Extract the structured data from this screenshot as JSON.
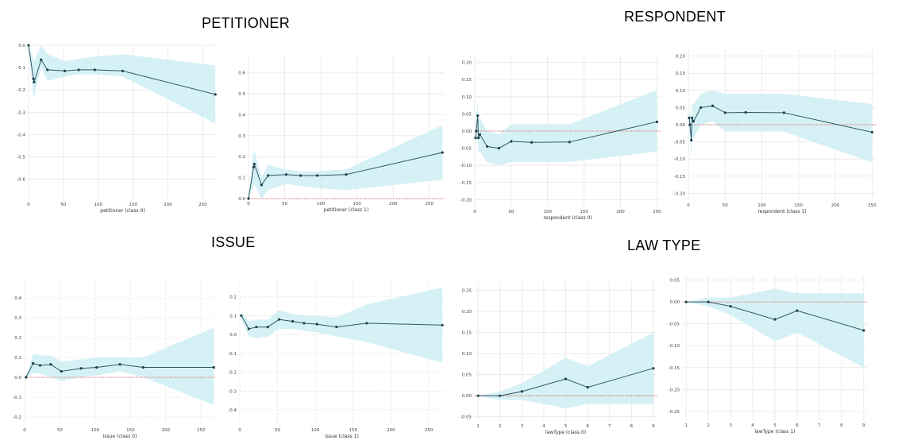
{
  "sections": {
    "petitioner": "PETITIONER",
    "respondent": "RESPONDENT",
    "issue": "ISSUE",
    "law_type": "LAW TYPE"
  },
  "colors": {
    "band": "#cfeef3",
    "line": "#2e5864",
    "point": "#1e3f49",
    "zero": "#e45a5a",
    "grid": "#e6e6e6"
  },
  "chart_data": [
    {
      "type": "line",
      "xlabel": "petitioner (class 0)",
      "xlim": [
        0,
        270
      ],
      "ylim": [
        -0.69,
        0.0
      ],
      "xticks": [
        0,
        50,
        100,
        150,
        200,
        250
      ],
      "yticks": [
        0.0,
        -0.1,
        -0.2,
        -0.3,
        -0.4,
        -0.5,
        -0.6
      ],
      "ytick_labels": [
        "0.0",
        "-0.1",
        "-0.2",
        "-0.3",
        "-0.4",
        "-0.5",
        "-0.6"
      ],
      "zero_line": false,
      "grid_dashed": false,
      "x": [
        0,
        7,
        8,
        18,
        27,
        52,
        72,
        95,
        135,
        268
      ],
      "y": [
        0.0,
        -0.15,
        -0.165,
        -0.065,
        -0.11,
        -0.115,
        -0.11,
        -0.11,
        -0.115,
        -0.22
      ],
      "lower": [
        0.0,
        -0.23,
        -0.23,
        -0.1,
        -0.16,
        -0.14,
        -0.13,
        -0.13,
        -0.14,
        -0.35
      ],
      "upper": [
        0.0,
        -0.06,
        -0.07,
        0.0,
        -0.04,
        -0.07,
        -0.06,
        -0.05,
        -0.04,
        -0.09
      ]
    },
    {
      "type": "line",
      "xlabel": "petitioner (class 1)",
      "xlim": [
        0,
        270
      ],
      "ylim": [
        0.0,
        0.69
      ],
      "xticks": [
        0,
        50,
        100,
        150,
        200,
        250
      ],
      "yticks": [
        0.0,
        0.1,
        0.2,
        0.3,
        0.4,
        0.5,
        0.6
      ],
      "ytick_labels": [
        "0.0",
        "0.1",
        "0.2",
        "0.3",
        "0.4",
        "0.5",
        "0.6"
      ],
      "zero_line": true,
      "grid_dashed": false,
      "x": [
        0,
        7,
        8,
        18,
        27,
        52,
        72,
        95,
        135,
        268
      ],
      "y": [
        0.0,
        0.15,
        0.165,
        0.065,
        0.11,
        0.115,
        0.11,
        0.11,
        0.115,
        0.22
      ],
      "lower": [
        0.0,
        0.06,
        0.07,
        0.0,
        0.04,
        0.07,
        0.06,
        0.05,
        0.04,
        0.09
      ],
      "upper": [
        0.0,
        0.23,
        0.23,
        0.1,
        0.16,
        0.14,
        0.13,
        0.13,
        0.14,
        0.35
      ]
    },
    {
      "type": "line",
      "xlabel": "respondent (class 0)",
      "xlim": [
        0,
        255
      ],
      "ylim": [
        -0.22,
        0.22
      ],
      "xticks": [
        0,
        50,
        100,
        150,
        200,
        250
      ],
      "yticks": [
        0.2,
        0.15,
        0.1,
        0.05,
        0.0,
        -0.05,
        -0.1,
        -0.15,
        -0.2
      ],
      "ytick_labels": [
        "0.20",
        "0.15",
        "0.10",
        "0.05",
        "0.00",
        "-0.05",
        "-0.10",
        "-0.15",
        "-0.20"
      ],
      "zero_line": true,
      "grid_dashed": false,
      "x": [
        1,
        2,
        4,
        5,
        7,
        17,
        33,
        50,
        78,
        130,
        250
      ],
      "y": [
        -0.02,
        0.0,
        0.045,
        -0.02,
        -0.01,
        -0.045,
        -0.05,
        -0.03,
        -0.033,
        -0.032,
        0.027
      ],
      "lower": [
        -0.05,
        -0.04,
        0.0,
        -0.06,
        -0.06,
        -0.09,
        -0.1,
        -0.09,
        -0.09,
        -0.09,
        -0.06
      ],
      "upper": [
        0.02,
        0.04,
        0.09,
        0.03,
        0.04,
        0.0,
        -0.01,
        0.02,
        0.02,
        0.02,
        0.12
      ]
    },
    {
      "type": "line",
      "xlabel": "respondent (class 1)",
      "xlim": [
        0,
        255
      ],
      "ylim": [
        -0.22,
        0.22
      ],
      "xticks": [
        0,
        50,
        100,
        150,
        200,
        250
      ],
      "yticks": [
        0.2,
        0.15,
        0.1,
        0.05,
        0.0,
        -0.05,
        -0.1,
        -0.15,
        -0.2
      ],
      "ytick_labels": [
        "0.20",
        "0.15",
        "0.10",
        "0.05",
        "0.00",
        "-0.05",
        "-0.10",
        "-0.15",
        "-0.20"
      ],
      "zero_line": true,
      "grid_dashed": false,
      "x": [
        1,
        2,
        4,
        5,
        7,
        17,
        33,
        50,
        78,
        130,
        250
      ],
      "y": [
        0.02,
        0.0,
        -0.045,
        0.02,
        0.01,
        0.05,
        0.055,
        0.035,
        0.036,
        0.035,
        -0.022
      ],
      "lower": [
        -0.02,
        -0.04,
        -0.09,
        -0.03,
        -0.04,
        0.0,
        0.01,
        -0.02,
        -0.02,
        -0.02,
        -0.11
      ],
      "upper": [
        0.05,
        0.04,
        0.0,
        0.06,
        0.06,
        0.09,
        0.1,
        0.09,
        0.09,
        0.09,
        0.06
      ]
    },
    {
      "type": "line",
      "xlabel": "issue (class 0)",
      "xlim": [
        0,
        270
      ],
      "ylim": [
        -0.24,
        0.5
      ],
      "xticks": [
        0,
        50,
        100,
        150,
        200,
        250
      ],
      "yticks": [
        0.4,
        0.3,
        0.2,
        0.1,
        0.0,
        -0.1,
        -0.2
      ],
      "ytick_labels": [
        "0.4",
        "0.3",
        "0.2",
        "0.1",
        "0.0",
        "-0.1",
        "-0.2"
      ],
      "zero_line": true,
      "grid_dashed": true,
      "x": [
        2,
        12,
        22,
        37,
        52,
        80,
        102,
        135,
        168,
        268
      ],
      "y": [
        0.0,
        0.07,
        0.06,
        0.065,
        0.03,
        0.045,
        0.05,
        0.065,
        0.05,
        0.05
      ],
      "lower": [
        0.0,
        0.02,
        0.02,
        0.0,
        -0.02,
        0.0,
        0.01,
        0.03,
        0.0,
        -0.14
      ],
      "upper": [
        0.0,
        0.12,
        0.11,
        0.11,
        0.08,
        0.09,
        0.1,
        0.1,
        0.1,
        0.25
      ]
    },
    {
      "type": "line",
      "xlabel": "issue (class 1)",
      "xlim": [
        0,
        270
      ],
      "ylim": [
        -0.48,
        0.3
      ],
      "xticks": [
        0,
        50,
        100,
        150,
        200,
        250
      ],
      "yticks": [
        0.2,
        0.1,
        0.0,
        -0.1,
        -0.2,
        -0.3,
        -0.4
      ],
      "ytick_labels": [
        "0.2",
        "0.1",
        "0.0",
        "-0.1",
        "-0.2",
        "-0.3",
        "-0.4"
      ],
      "zero_line": false,
      "grid_dashed": true,
      "x": [
        2,
        12,
        22,
        37,
        52,
        70,
        85,
        102,
        128,
        168,
        268
      ],
      "y": [
        0.1,
        0.03,
        0.04,
        0.04,
        0.08,
        0.07,
        0.06,
        0.055,
        0.04,
        0.06,
        0.05
      ],
      "lower": [
        0.08,
        -0.01,
        -0.02,
        -0.01,
        0.03,
        0.03,
        0.02,
        0.01,
        -0.01,
        -0.04,
        -0.15
      ],
      "upper": [
        0.12,
        0.07,
        0.08,
        0.08,
        0.13,
        0.11,
        0.1,
        0.1,
        0.09,
        0.16,
        0.25
      ]
    },
    {
      "type": "line",
      "xlabel": "lawType (class 0)",
      "xlim": [
        0.85,
        9.15
      ],
      "ylim": [
        -0.06,
        0.27
      ],
      "xticks": [
        1,
        2,
        3,
        4,
        5,
        6,
        7,
        8,
        9
      ],
      "yticks": [
        0.25,
        0.2,
        0.15,
        0.1,
        0.05,
        0.0,
        -0.05
      ],
      "ytick_labels": [
        "0.25",
        "0.20",
        "0.15",
        "0.10",
        "0.05",
        "0.00",
        "-0.05"
      ],
      "zero_line": true,
      "grid_dashed": false,
      "x": [
        1,
        2,
        3,
        5,
        6,
        9
      ],
      "y": [
        0.0,
        0.0,
        0.01,
        0.04,
        0.02,
        0.065
      ],
      "lower": [
        0.0,
        -0.01,
        -0.01,
        -0.03,
        -0.02,
        -0.02
      ],
      "upper": [
        0.0,
        0.01,
        0.03,
        0.09,
        0.07,
        0.15
      ]
    },
    {
      "type": "line",
      "xlabel": "lawType (class 1)",
      "xlim": [
        0.85,
        9.15
      ],
      "ylim": [
        -0.27,
        0.06
      ],
      "xticks": [
        1,
        2,
        3,
        4,
        5,
        6,
        7,
        8,
        9
      ],
      "yticks": [
        0.05,
        0.0,
        -0.05,
        -0.1,
        -0.15,
        -0.2,
        -0.25
      ],
      "ytick_labels": [
        "0.05",
        "0.00",
        "-0.05",
        "-0.10",
        "-0.15",
        "-0.20",
        "-0.25"
      ],
      "zero_line": true,
      "grid_dashed": false,
      "x": [
        1,
        2,
        3,
        5,
        6,
        9
      ],
      "y": [
        0.0,
        0.0,
        -0.01,
        -0.04,
        -0.02,
        -0.065
      ],
      "lower": [
        0.0,
        -0.01,
        -0.03,
        -0.09,
        -0.07,
        -0.15
      ],
      "upper": [
        0.0,
        0.01,
        0.01,
        0.03,
        0.02,
        0.02
      ]
    }
  ]
}
